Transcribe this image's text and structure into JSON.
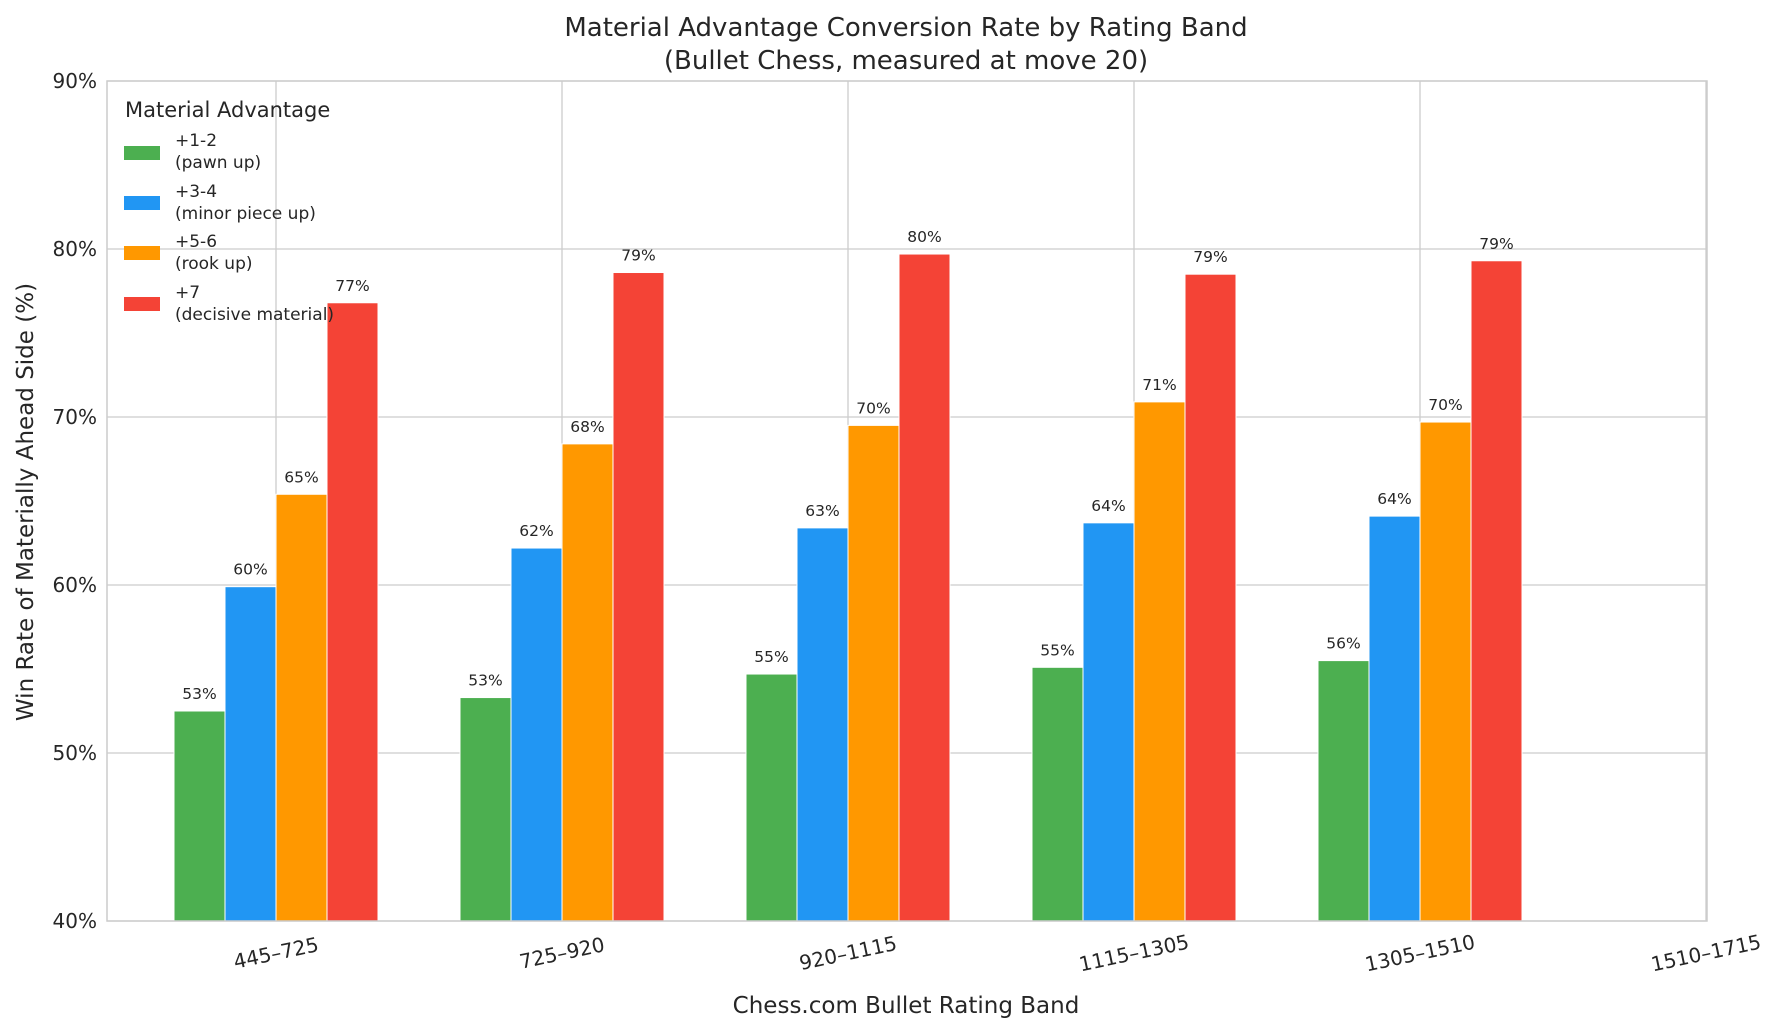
{
  "chart_data": {
    "type": "bar",
    "title": [
      "Material Advantage Conversion Rate by Rating Band",
      "(Bullet Chess, measured at move 20)"
    ],
    "xlabel": "Chess.com Bullet Rating Band",
    "ylabel": "Win Rate of Materially Ahead Side (%)",
    "categories": [
      "445–725",
      "725–920",
      "920–1115",
      "1115–1305",
      "1305–1510",
      "1510–1715"
    ],
    "ylim": [
      40,
      90
    ],
    "yticks": [
      40,
      50,
      60,
      70,
      80,
      90
    ],
    "ytick_labels": [
      "40%",
      "50%",
      "60%",
      "70%",
      "80%",
      "90%"
    ],
    "grid": true,
    "legend": {
      "title": "Material Advantage",
      "placement": "top-left"
    },
    "series": [
      {
        "name": [
          "+1-2",
          "(pawn up)"
        ],
        "color": "#4caf50",
        "values": [
          52.5,
          53.3,
          54.7,
          55.1,
          55.5,
          null
        ],
        "labels": [
          "53%",
          "53%",
          "55%",
          "55%",
          "56%",
          null
        ]
      },
      {
        "name": [
          "+3-4",
          "(minor piece up)"
        ],
        "color": "#2196f3",
        "values": [
          59.9,
          62.2,
          63.4,
          63.7,
          64.1,
          null
        ],
        "labels": [
          "60%",
          "62%",
          "63%",
          "64%",
          "64%",
          null
        ]
      },
      {
        "name": [
          "+5-6",
          "(rook up)"
        ],
        "color": "#ff9800",
        "values": [
          65.4,
          68.4,
          69.5,
          70.9,
          69.7,
          null
        ],
        "labels": [
          "65%",
          "68%",
          "70%",
          "71%",
          "70%",
          null
        ]
      },
      {
        "name": [
          "+7",
          "(decisive material)"
        ],
        "color": "#f44336",
        "values": [
          76.8,
          78.6,
          79.7,
          78.5,
          79.3,
          null
        ],
        "labels": [
          "77%",
          "79%",
          "80%",
          "79%",
          "79%",
          null
        ]
      }
    ]
  }
}
